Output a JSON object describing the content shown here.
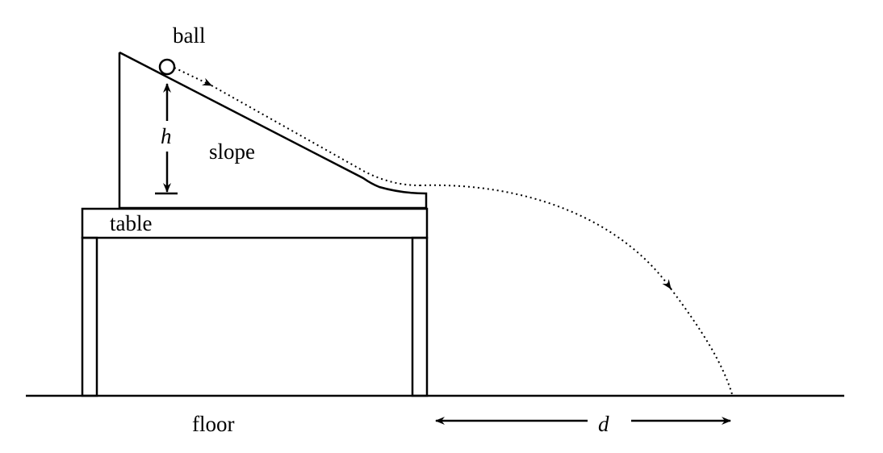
{
  "labels": {
    "ball": "ball",
    "height": "h",
    "slope": "slope",
    "table": "table",
    "floor": "floor",
    "distance": "d"
  },
  "colors": {
    "ink": "#000000",
    "background": "#ffffff"
  }
}
